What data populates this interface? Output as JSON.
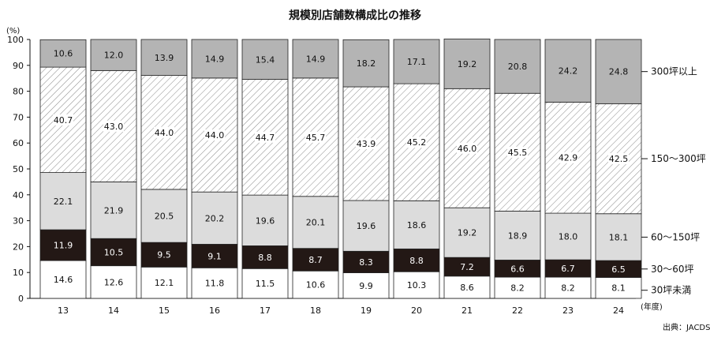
{
  "chart_data": {
    "type": "bar",
    "stacked": true,
    "title": "規模別店舗数構成比の推移",
    "y_unit": "(%)",
    "x_unit": "(年度)",
    "source": "出典：JACDS",
    "ylim": [
      0,
      100
    ],
    "yticks": [
      0,
      10,
      20,
      30,
      40,
      50,
      60,
      70,
      80,
      90,
      100
    ],
    "categories": [
      "13",
      "14",
      "15",
      "16",
      "17",
      "18",
      "19",
      "20",
      "21",
      "22",
      "23",
      "24"
    ],
    "series": [
      {
        "name": "30坪未満",
        "fill": "white",
        "values": [
          14.6,
          12.6,
          12.1,
          11.8,
          11.5,
          10.6,
          9.9,
          10.3,
          8.6,
          8.2,
          8.2,
          8.1
        ]
      },
      {
        "name": "30～60坪",
        "fill": "#231815",
        "values": [
          11.9,
          10.5,
          9.5,
          9.1,
          8.8,
          8.7,
          8.3,
          8.8,
          7.2,
          6.6,
          6.7,
          6.5
        ]
      },
      {
        "name": "60～150坪",
        "fill": "#dcdcdc",
        "values": [
          22.1,
          21.9,
          20.5,
          20.2,
          19.6,
          20.1,
          19.6,
          18.6,
          19.2,
          18.9,
          18.0,
          18.1
        ]
      },
      {
        "name": "150～300坪",
        "fill": "hatch",
        "values": [
          40.7,
          43.0,
          44.0,
          44.0,
          44.7,
          45.7,
          43.9,
          45.2,
          46.0,
          45.5,
          42.9,
          42.5
        ]
      },
      {
        "name": "300坪以上",
        "fill": "#b4b4b4",
        "values": [
          10.6,
          12.0,
          13.9,
          14.9,
          15.4,
          14.9,
          18.2,
          17.1,
          19.2,
          20.8,
          24.2,
          24.8
        ]
      }
    ]
  }
}
